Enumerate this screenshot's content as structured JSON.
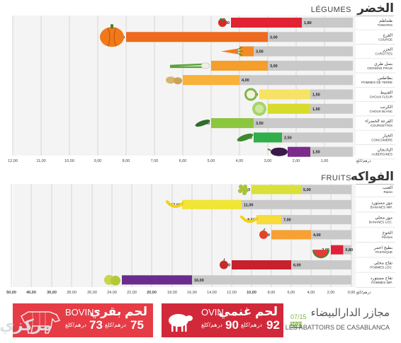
{
  "legumes": {
    "title_fr": "LÉGUMES",
    "title_ar": "الخضر",
    "rows": [
      {
        "name_ar": "طماطم",
        "name_fr": "TOMATES",
        "left": 4.3,
        "right": 1.8,
        "color": "#e02233",
        "icon": "tomato-icon"
      },
      {
        "name_ar": "القرع",
        "name_fr": "COURGE",
        "left": 8.0,
        "right": 3.0,
        "color": "#ee6a1e",
        "icon": "pumpkin-icon"
      },
      {
        "name_ar": "الجزر",
        "name_fr": "CAROTTES",
        "left": 4.0,
        "right": 3.5,
        "color": "#f58a22",
        "icon": "carrot-icon"
      },
      {
        "name_ar": "بصل طري",
        "name_fr": "OIGNONS FRAIS",
        "left": 5.0,
        "right": 3.0,
        "color": "#f59e2b",
        "icon": "green-onion-icon"
      },
      {
        "name_ar": "بطاطس",
        "name_fr": "POMMES DE TERRE",
        "left": 6.0,
        "right": 4.0,
        "color": "#f8b23a",
        "icon": "potato-icon"
      },
      {
        "name_ar": "القنبيط",
        "name_fr": "CHOUX FLEUR",
        "left": 3.3,
        "right": 1.5,
        "color": "#f6e365",
        "icon": "cauliflower-icon"
      },
      {
        "name_ar": "الكرنب",
        "name_fr": "CHOUX BLANC",
        "left": 3.0,
        "right": 1.5,
        "color": "#d7dc2c",
        "icon": "cabbage-icon"
      },
      {
        "name_ar": "القرعة الخضراء",
        "name_fr": "COURGETTES",
        "left": 5.0,
        "right": 3.5,
        "color": "#8cc63f",
        "icon": "zucchini-icon"
      },
      {
        "name_ar": "الخيار",
        "name_fr": "CONCOMBRE",
        "left": 3.5,
        "right": 2.5,
        "color": "#2fae4a",
        "icon": "cucumber-icon"
      },
      {
        "name_ar": "الباذنجان",
        "name_fr": "AUBERGINES",
        "left": 2.3,
        "right": 1.5,
        "color": "#7b2a8c",
        "icon": "eggplant-icon"
      }
    ],
    "axis_ticks": [
      "12,00",
      "11,00",
      "10,00",
      "9,00",
      "8,00",
      "7,00",
      "6,00",
      "5,00",
      "4,00",
      "3,00",
      "2,00",
      "1,00"
    ],
    "axis_unit": "درهم/كلغ"
  },
  "fruits": {
    "title_fr": "FRUITS",
    "title_ar": "الفواكه",
    "rows": [
      {
        "name_ar": "العنب",
        "name_fr": "Raisin",
        "left": 10.0,
        "right": 5.0,
        "color": "#d9e03a",
        "icon": "grapes-icon"
      },
      {
        "name_ar": "موز مستورد",
        "name_fr": "BANANES IMP.",
        "left": 17.0,
        "right": 11.0,
        "color": "#f2e635",
        "icon": "banana-icon"
      },
      {
        "name_ar": "موز محلي",
        "name_fr": "BANANES LOC.",
        "left": 9.5,
        "right": 7.0,
        "color": "#f7dc3a",
        "icon": "banana-icon"
      },
      {
        "name_ar": "الخوخ",
        "name_fr": "Pêches",
        "left": 8.0,
        "right": 4.0,
        "color": "#f7a033",
        "icon": "peach-icon"
      },
      {
        "name_ar": "بطيخ احمر",
        "name_fr": "PASTEQUE",
        "left": 2.0,
        "right": 0.8,
        "color": "#e0203a",
        "icon": "watermelon-icon"
      },
      {
        "name_ar": "تفاح محلي",
        "name_fr": "POMMES LOC.",
        "left": 12.0,
        "right": 6.0,
        "color": "#c8202c",
        "icon": "apple-icon"
      },
      {
        "name_ar": "تفاح مستورد",
        "name_fr": "POMMES IMP.",
        "left": 23.0,
        "right": 16.0,
        "color": "#6a2c8e",
        "icon": "apples-icon"
      }
    ],
    "axis_ticks": [
      "50,00",
      "40,00",
      "30,00",
      "28,00",
      "26,00",
      "24,00",
      "22,00",
      "20,00",
      "18,00",
      "16,00",
      "14,00",
      "12,00",
      "10,00",
      "8,00",
      "6,00",
      "4,00",
      "2,00",
      "0,00"
    ],
    "axis_unit": "درهم/كلغ"
  },
  "banner": {
    "bovin_fr": "BOVIN",
    "bovin_ar": "لحم بقري",
    "bovin_left": "73",
    "bovin_left_unit": "درهم/كلغ",
    "bovin_right": "75",
    "bovin_right_unit": "درهم/كلغ",
    "ovin_fr": "OVIN",
    "ovin_ar": "لحم غنمي",
    "ovin_left": "90",
    "ovin_left_unit": "درهم/كلغ",
    "ovin_right": "92",
    "ovin_right_unit": "درهم/كلغ",
    "date_top": "07/15",
    "date_year": "2023",
    "abattoirs_ar": "مجازر الدارالبيضاء",
    "abattoirs_fr": "LES ABATTOIRS DE CASABLANCA",
    "watermark": "مركزي"
  },
  "chart_data": [
    {
      "type": "bar",
      "title": "LÉGUMES / الخضر",
      "categories": [
        "TOMATES",
        "COURGE",
        "CAROTTES",
        "OIGNONS FRAIS",
        "POMMES DE TERRE",
        "CHOUX FLEUR",
        "CHOUX BLANC",
        "COURGETTES",
        "CONCOMBRE",
        "AUBERGINES"
      ],
      "series": [
        {
          "values": [
            4.3,
            8.0,
            4.0,
            5.0,
            6.0,
            3.3,
            3.0,
            5.0,
            3.5,
            2.3
          ]
        },
        {
          "values": [
            1.8,
            3.0,
            3.5,
            3.0,
            4.0,
            1.5,
            1.5,
            3.5,
            2.5,
            1.5
          ]
        }
      ],
      "xlabel": "درهم/كلغ",
      "xlim": [
        0,
        12
      ]
    },
    {
      "type": "bar",
      "title": "FRUITS / الفواكه",
      "categories": [
        "Raisin",
        "BANANES IMP.",
        "BANANES LOC.",
        "Pêches",
        "PASTEQUE",
        "POMMES LOC.",
        "POMMES IMP."
      ],
      "series": [
        {
          "values": [
            10.0,
            17.0,
            9.5,
            8.0,
            2.0,
            12.0,
            23.0
          ]
        },
        {
          "values": [
            5.0,
            11.0,
            7.0,
            4.0,
            0.8,
            6.0,
            16.0
          ]
        }
      ],
      "xlabel": "درهم/كلغ",
      "xlim": [
        0,
        50
      ]
    }
  ]
}
